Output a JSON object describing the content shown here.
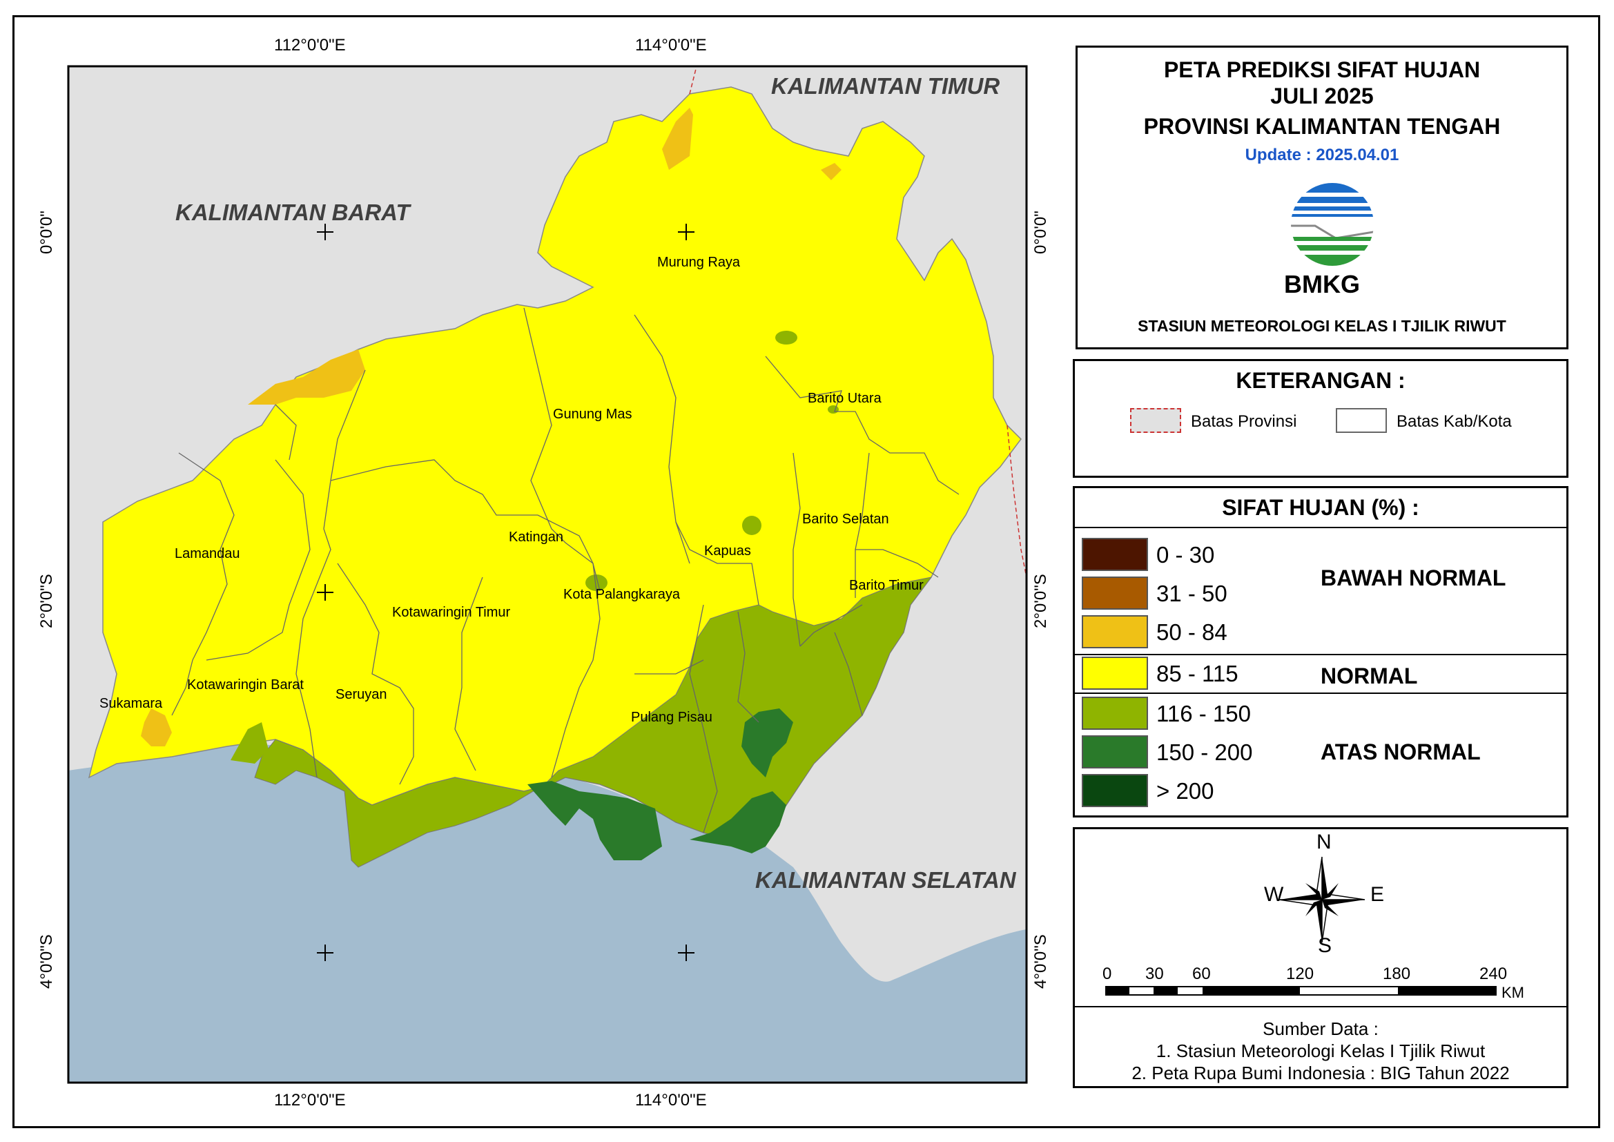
{
  "title": {
    "line1": "PETA PREDIKSI SIFAT HUJAN",
    "line2": "JULI 2025",
    "line3": "PROVINSI KALIMANTAN TENGAH",
    "update": "Update : 2025.04.01",
    "logo_text": "BMKG",
    "station": "STASIUN METEOROLOGI KELAS I TJILIK RIWUT"
  },
  "colors": {
    "sea": "#a3bccf",
    "outside": "#e1e1e1",
    "normal": "#ffff00",
    "below_50_84": "#efc116",
    "below_31_50": "#a85a00",
    "below_0_30": "#4d1500",
    "above_116_150": "#8fb400",
    "above_150_200": "#2a7a2a",
    "above_200": "#0a4710",
    "update_text": "#1a56c8"
  },
  "map": {
    "neighbor_labels": {
      "kaltim": "KALIMANTAN TIMUR",
      "kalbar": "KALIMANTAN BARAT",
      "kalsel": "KALIMANTAN SELATAN"
    },
    "regencies": {
      "murung_raya": "Murung Raya",
      "gunung_mas": "Gunung Mas",
      "barito_utara": "Barito Utara",
      "katingan": "Katingan",
      "lamandau": "Lamandau",
      "kapuas": "Kapuas",
      "barito_selatan": "Barito Selatan",
      "barito_timur": "Barito Timur",
      "kota_palangkaraya": "Kota Palangkaraya",
      "kotawaringin_timur": "Kotawaringin Timur",
      "kotawaringin_barat": "Kotawaringin Barat",
      "seruyan": "Seruyan",
      "sukamara": "Sukamara",
      "pulang_pisau": "Pulang Pisau"
    },
    "coords": {
      "top_left": "112°0'0\"E",
      "top_right": "114°0'0\"E",
      "bottom_left": "112°0'0\"E",
      "bottom_right": "114°0'0\"E",
      "left_0": "0°0'0\"",
      "left_2s": "2°0'0\"S",
      "left_4s": "4°0'0\"S",
      "right_0": "0°0'0\"",
      "right_2s": "2°0'0\"S",
      "right_4s": "4°0'0\"S"
    }
  },
  "keterangan": {
    "title": "KETERANGAN :",
    "batas_provinsi": "Batas Provinsi",
    "batas_kab": "Batas Kab/Kota"
  },
  "legend": {
    "title": "SIFAT HUJAN (%) :",
    "items": [
      {
        "label": "0 - 30",
        "color": "#4d1500"
      },
      {
        "label": "31 - 50",
        "color": "#a85a00"
      },
      {
        "label": "50 - 84",
        "color": "#efc116"
      },
      {
        "label": "85 - 115",
        "color": "#ffff00"
      },
      {
        "label": "116 - 150",
        "color": "#8fb400"
      },
      {
        "label": "150 - 200",
        "color": "#2a7a2a"
      },
      {
        "label": "> 200",
        "color": "#0a4710"
      }
    ],
    "categories": {
      "bawah": "BAWAH NORMAL",
      "normal": "NORMAL",
      "atas": "ATAS NORMAL"
    }
  },
  "compass": {
    "n": "N",
    "s": "S",
    "e": "E",
    "w": "W"
  },
  "scale": {
    "ticks": [
      "0",
      "30",
      "60",
      "120",
      "180",
      "240"
    ],
    "unit": "KM"
  },
  "source": {
    "heading": "Sumber Data :",
    "line1": "1. Stasiun Meteorologi Kelas I Tjilik Riwut",
    "line2": "2. Peta Rupa Bumi Indonesia : BIG Tahun 2022"
  }
}
